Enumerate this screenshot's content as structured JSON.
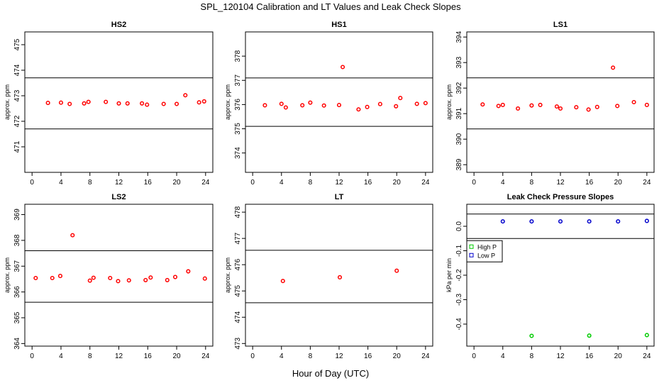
{
  "figure": {
    "title": "SPL_120104  Calibration and LT Values and Leak Check Slopes",
    "xlabel": "Hour of Day (UTC)"
  },
  "chart_data": [
    {
      "type": "scatter",
      "title": "HS2",
      "xlabel": "",
      "ylabel": "approx. ppm",
      "xlim": [
        -1,
        25
      ],
      "ylim": [
        470,
        475.5
      ],
      "xticks": [
        0,
        4,
        8,
        12,
        16,
        20,
        24
      ],
      "yticks": [
        471,
        472,
        473,
        474,
        475
      ],
      "hlines": [
        471.7,
        473.7
      ],
      "series": [
        {
          "name": "HS2",
          "color": "#ff0000",
          "x": [
            2.2,
            4.0,
            5.2,
            7.2,
            7.8,
            10.2,
            12.0,
            13.2,
            15.2,
            15.9,
            18.2,
            20.0,
            21.2,
            23.1,
            23.8
          ],
          "y": [
            472.72,
            472.73,
            472.68,
            472.7,
            472.76,
            472.76,
            472.7,
            472.7,
            472.7,
            472.65,
            472.68,
            472.68,
            473.02,
            472.74,
            472.78
          ]
        }
      ]
    },
    {
      "type": "scatter",
      "title": "HS1",
      "xlabel": "",
      "ylabel": "approx. ppm",
      "xlim": [
        -1,
        25
      ],
      "ylim": [
        373.2,
        379
      ],
      "xticks": [
        0,
        4,
        8,
        12,
        16,
        20,
        24
      ],
      "yticks": [
        374,
        375,
        376,
        377,
        378
      ],
      "hlines": [
        375.1,
        377.1
      ],
      "series": [
        {
          "name": "HS1",
          "color": "#ff0000",
          "x": [
            1.7,
            4.0,
            4.6,
            6.9,
            8.0,
            9.9,
            12.0,
            12.5,
            14.7,
            15.9,
            17.7,
            19.9,
            20.5,
            22.8,
            24.0
          ],
          "y": [
            375.97,
            376.03,
            375.88,
            375.97,
            376.08,
            375.96,
            375.98,
            377.55,
            375.8,
            375.9,
            376.02,
            375.93,
            376.27,
            376.03,
            376.06
          ]
        }
      ]
    },
    {
      "type": "scatter",
      "title": "LS1",
      "xlabel": "",
      "ylabel": "approx. ppm",
      "xlim": [
        -1,
        25
      ],
      "ylim": [
        388.7,
        394.2
      ],
      "xticks": [
        0,
        4,
        8,
        12,
        16,
        20,
        24
      ],
      "yticks": [
        389,
        390,
        391,
        392,
        393,
        394
      ],
      "hlines": [
        390.4,
        392.4
      ],
      "series": [
        {
          "name": "LS1",
          "color": "#ff0000",
          "x": [
            1.2,
            3.4,
            4.0,
            6.1,
            8.0,
            9.2,
            11.5,
            12.0,
            14.2,
            15.9,
            17.1,
            19.3,
            19.9,
            22.2,
            24.0
          ],
          "y": [
            391.36,
            391.3,
            391.34,
            391.2,
            391.32,
            391.34,
            391.28,
            391.2,
            391.25,
            391.16,
            391.26,
            392.8,
            391.3,
            391.45,
            391.34
          ]
        }
      ]
    },
    {
      "type": "scatter",
      "title": "LS2",
      "xlabel": "",
      "ylabel": "approx. ppm",
      "xlim": [
        -1,
        25
      ],
      "ylim": [
        363.9,
        369.4
      ],
      "xticks": [
        0,
        4,
        8,
        12,
        16,
        20,
        24
      ],
      "yticks": [
        364,
        365,
        366,
        367,
        368,
        369
      ],
      "hlines": [
        365.6,
        367.6
      ],
      "series": [
        {
          "name": "LS2",
          "color": "#ff0000",
          "x": [
            0.5,
            2.8,
            3.9,
            5.6,
            8.0,
            8.5,
            10.8,
            11.9,
            13.4,
            15.7,
            16.4,
            18.7,
            19.8,
            21.6,
            23.9
          ],
          "y": [
            366.54,
            366.54,
            366.62,
            368.2,
            366.44,
            366.55,
            366.54,
            366.42,
            366.45,
            366.46,
            366.56,
            366.46,
            366.58,
            366.8,
            366.52
          ]
        }
      ]
    },
    {
      "type": "scatter",
      "title": "LT",
      "xlabel": "",
      "ylabel": "approx. ppm",
      "xlim": [
        -1,
        25
      ],
      "ylim": [
        472.9,
        478.3
      ],
      "xticks": [
        0,
        4,
        8,
        12,
        16,
        20,
        24
      ],
      "yticks": [
        473,
        474,
        475,
        476,
        477,
        478
      ],
      "hlines": [
        474.55,
        476.55
      ],
      "series": [
        {
          "name": "LT",
          "color": "#ff0000",
          "x": [
            4.2,
            12.1,
            20.0
          ],
          "y": [
            475.38,
            475.52,
            475.77
          ]
        }
      ]
    },
    {
      "type": "scatter",
      "title": "Leak Check Pressure Slopes",
      "xlabel": "",
      "ylabel": "kPa per min",
      "xlim": [
        -1,
        25
      ],
      "ylim": [
        -0.49,
        0.09
      ],
      "xticks": [
        0,
        4,
        8,
        12,
        16,
        20,
        24
      ],
      "yticks": [
        -0.4,
        -0.3,
        -0.2,
        -0.1,
        0.0
      ],
      "ytick_labels": [
        "-0.4",
        "-0.3",
        "-0.2",
        "-0.1",
        "0.0"
      ],
      "hlines": [
        -0.05,
        0.05
      ],
      "legend": {
        "position": "left",
        "entries": [
          "High P",
          "Low P"
        ]
      },
      "series": [
        {
          "name": "High P",
          "color": "#00cc00",
          "x": [
            8.0,
            16.0,
            24.0
          ],
          "y": [
            -0.448,
            -0.447,
            -0.445
          ]
        },
        {
          "name": "Low P",
          "color": "#0000cc",
          "x": [
            4.0,
            8.0,
            12.0,
            16.0,
            20.0,
            24.0
          ],
          "y": [
            0.02,
            0.02,
            0.02,
            0.02,
            0.02,
            0.022
          ]
        }
      ]
    }
  ]
}
